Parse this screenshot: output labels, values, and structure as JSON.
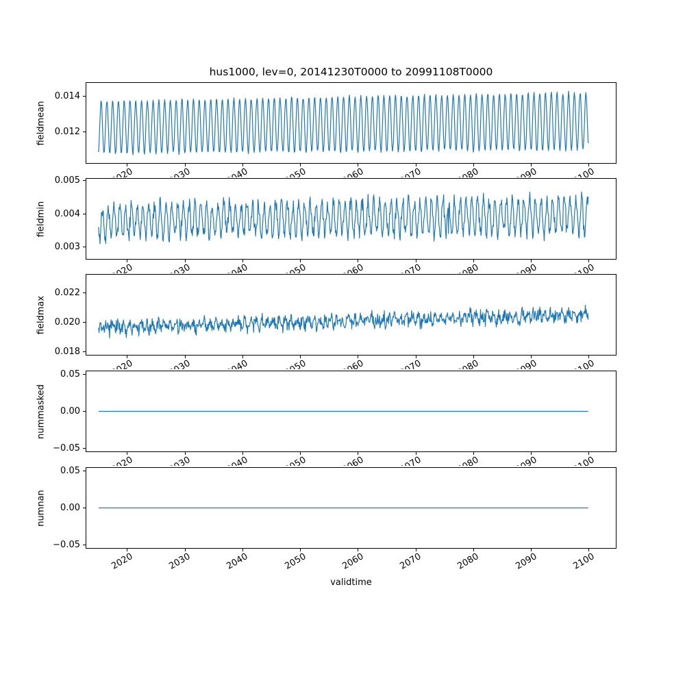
{
  "figure": {
    "title": "hus1000, lev=0, 20141230T0000 to 20991108T0000",
    "xlabel": "validtime",
    "line_color": "#1f77b4",
    "spine_color": "#000000",
    "background": "#ffffff"
  },
  "xaxis": {
    "xlim": [
      2012.76,
      2104.75
    ],
    "ticks": [
      {
        "label": "2020",
        "value": 2020
      },
      {
        "label": "2030",
        "value": 2030
      },
      {
        "label": "2040",
        "value": 2040
      },
      {
        "label": "2050",
        "value": 2050
      },
      {
        "label": "2060",
        "value": 2060
      },
      {
        "label": "2070",
        "value": 2070
      },
      {
        "label": "2080",
        "value": 2080
      },
      {
        "label": "2090",
        "value": 2090
      },
      {
        "label": "2100",
        "value": 2100
      }
    ]
  },
  "chart_data": [
    {
      "type": "line",
      "name": "fieldmean",
      "ylabel": "fieldmean",
      "x_start": 2015.0,
      "x_end": 2099.85,
      "n_points": 1024,
      "ylim": [
        0.0102,
        0.0148
      ],
      "yticks": [
        {
          "label": "0.014",
          "value": 0.014
        },
        {
          "label": "0.012",
          "value": 0.012
        }
      ],
      "gen": {
        "base": 0.01225,
        "trend": 0.00035,
        "amp": 0.0015,
        "amp_trend": 0.00015,
        "phase": 0.2,
        "noise": 0.00012,
        "seed": 11,
        "spike_prob": 0,
        "spike_amp": 0
      }
    },
    {
      "type": "line",
      "name": "fieldmin",
      "ylabel": "fieldmin",
      "x_start": 2015.0,
      "x_end": 2099.85,
      "n_points": 1024,
      "ylim": [
        0.00262,
        0.00508
      ],
      "yticks": [
        {
          "label": "0.005",
          "value": 0.005
        },
        {
          "label": "0.004",
          "value": 0.004
        },
        {
          "label": "0.003",
          "value": 0.003
        }
      ],
      "gen": {
        "base": 0.00378,
        "trend": 0.00018,
        "amp": 0.00045,
        "amp_trend": 8e-05,
        "phase": 0.45,
        "noise": 0.0003,
        "seed": 22,
        "spike_prob": 0.002,
        "spike_amp": -0.0008
      }
    },
    {
      "type": "line",
      "name": "fieldmax",
      "ylabel": "fieldmax",
      "x_start": 2015.0,
      "x_end": 2099.85,
      "n_points": 1024,
      "ylim": [
        0.01775,
        0.02325
      ],
      "yticks": [
        {
          "label": "0.022",
          "value": 0.022
        },
        {
          "label": "0.020",
          "value": 0.02
        },
        {
          "label": "0.018",
          "value": 0.018
        }
      ],
      "gen": {
        "base": 0.0196,
        "trend": 0.0009,
        "amp": 0.00025,
        "amp_trend": 0.0,
        "phase": 0.1,
        "noise": 0.00055,
        "seed": 33,
        "spike_prob": 0.004,
        "spike_amp": 0.0016
      }
    },
    {
      "type": "line",
      "name": "nummasked",
      "ylabel": "nummasked",
      "x_start": 2015.0,
      "x_end": 2099.85,
      "n_points": 400,
      "ylim": [
        -0.0555,
        0.0555
      ],
      "yticks": [
        {
          "label": "0.05",
          "value": 0.05
        },
        {
          "label": "0.00",
          "value": 0.0
        },
        {
          "label": "−0.05",
          "value": -0.05
        }
      ],
      "gen": {
        "base": 0.0,
        "trend": 0.0,
        "amp": 0.0,
        "amp_trend": 0.0,
        "phase": 0.0,
        "noise": 0.0,
        "seed": 44,
        "spike_prob": 0,
        "spike_amp": 0
      }
    },
    {
      "type": "line",
      "name": "numnan",
      "ylabel": "numnan",
      "x_start": 2015.0,
      "x_end": 2099.85,
      "n_points": 400,
      "ylim": [
        -0.0555,
        0.0555
      ],
      "yticks": [
        {
          "label": "0.05",
          "value": 0.05
        },
        {
          "label": "0.00",
          "value": 0.0
        },
        {
          "label": "−0.05",
          "value": -0.05
        }
      ],
      "gen": {
        "base": 0.0,
        "trend": 0.0,
        "amp": 0.0,
        "amp_trend": 0.0,
        "phase": 0.0,
        "noise": 0.0,
        "seed": 55,
        "spike_prob": 0,
        "spike_amp": 0
      }
    }
  ]
}
